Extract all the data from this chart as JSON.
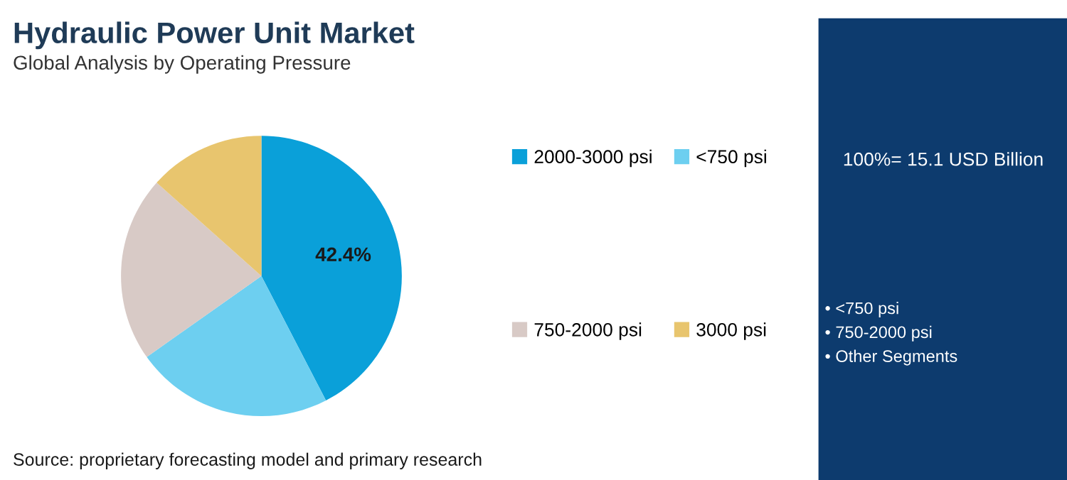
{
  "chart_data": {
    "type": "pie",
    "title": "Hydraulic Power Unit Market",
    "subtitle": "Global Analysis by Operating Pressure",
    "categories": [
      "2000-3000 psi",
      "<750 psi",
      "750-2000 psi",
      "3000 psi"
    ],
    "values": [
      42.4,
      22.8,
      21.4,
      13.4
    ],
    "colors": [
      "#0aa0d9",
      "#6dcff0",
      "#d8cac6",
      "#e8c56e"
    ],
    "value_labels": [
      "42.4%",
      null,
      null,
      null
    ],
    "legend": "right",
    "annotations": [
      "Source: proprietary forecasting model and primary research",
      "100%= 15.1 USD Billion",
      "• <750 psi",
      "• 750-2000 psi",
      "• Other Segments"
    ]
  }
}
